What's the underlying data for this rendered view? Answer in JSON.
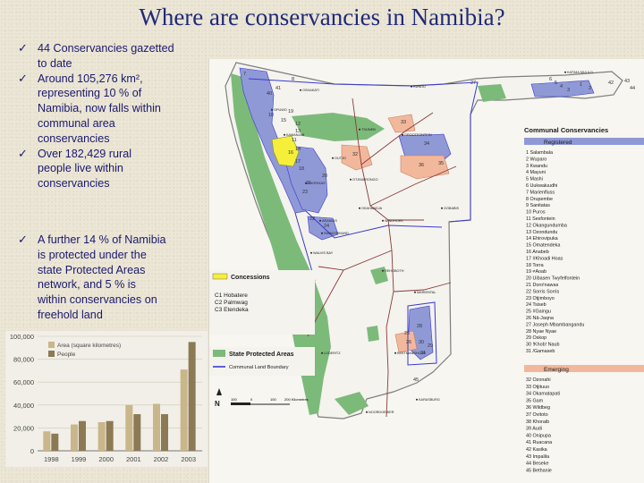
{
  "title": "Where are conservancies in Namibia?",
  "bullets": [
    {
      "lines": [
        "44 Conservancies gazetted",
        "to date"
      ]
    },
    {
      "lines": [
        "Around 105,276 km², ",
        "representing 10 % of",
        "Namibia, now falls within",
        "communal area",
        "conservancies"
      ]
    },
    {
      "lines": [
        "Over 182,429 rural",
        "people live within",
        "conservancies"
      ]
    },
    {
      "lines": [
        "A further 14 % of Namibia",
        "is protected under the",
        "state Protected Areas",
        "network, and 5 % is",
        "within conservancies on",
        "freehold land"
      ]
    }
  ],
  "chart_data": {
    "type": "bar",
    "categories": [
      "1998",
      "1999",
      "2000",
      "2001",
      "2002",
      "2003"
    ],
    "series": [
      {
        "name": "Area (square kilometres)",
        "color": "#c9b68a",
        "values": [
          17000,
          23000,
          25000,
          40000,
          41000,
          71000
        ]
      },
      {
        "name": "People",
        "color": "#8c7a55",
        "values": [
          15000,
          26000,
          26000,
          32000,
          32000,
          95000
        ]
      }
    ],
    "ylim": [
      0,
      100000
    ],
    "yticks": [
      "0",
      "20,000",
      "40,000",
      "60,000",
      "80,000",
      "100,000"
    ],
    "legend": "top-left"
  },
  "map": {
    "legend_communal": {
      "title": "Communal Conservancies",
      "registered_label": "Registered",
      "registered_color": "#8f99d6",
      "registered_items": [
        "1 Salambala",
        "2 Wuparo",
        "3 Kwandu",
        "4 Mayuni",
        "5 Mashi",
        "6 Uukwaluudhi",
        "7 Marienfluss",
        "8 Orupembe",
        "9 Sanitatas",
        "10 Puros",
        "11 Sesfontein",
        "12 Okangundumba",
        "13 Ozondundu",
        "14 Ehirovipuka",
        "15 Omatendeka",
        "16 Anabeb",
        "17 #Khoadi Hoas",
        "18 Torra",
        "19 ≠Aoab",
        "20 Uibasen Twyfelfontein",
        "21 Doro!nawas",
        "22 Sorris Sorris",
        "23 Otjimboyo",
        "24 Tsiseb",
        "25 #Gaingu",
        "26 Nâ-Jaqna",
        "27 Joseph Mbambangandu",
        "28 Nyae Nyae",
        "29 Oskop",
        "30 !Khob! Naub",
        "31 /Gamaseb"
      ],
      "emerging_label": "Emerging",
      "emerging_color": "#f2b89c",
      "emerging_items": [
        "32 Ozonahi",
        "33 Otjituuo",
        "34 Okamatapati",
        "35 Gam",
        "36 Wildbeg",
        "37 Ovitoto",
        "38 Khoraib",
        "39 Audi",
        "40 Onipupa",
        "41 Ruacana",
        "42 Kasika",
        "43 Impalila",
        "44 Beseke",
        "45 Bethanie"
      ]
    },
    "legend_concessions": {
      "title": "Concessions",
      "color": "#f5ef3a",
      "items": [
        "C1  Hobatere",
        "C2  Palmwag",
        "C3  Etendeka"
      ]
    },
    "legend_protected": {
      "label": "State Protected Areas",
      "color": "#7cba7a"
    },
    "legend_boundary": {
      "label": "Communal Land Boundary",
      "color": "#3a3ad0"
    },
    "scale": {
      "labels": [
        "100",
        "0",
        "100",
        "200 Kilometres"
      ]
    },
    "north": "N",
    "towns": [
      "OSHAKATI",
      "RUNDU",
      "KATIMA MULILO",
      "OUTJO",
      "TSUMEB",
      "GROOTFONTEIN",
      "OTJIWARONGO",
      "OKAHANDJA",
      "WINDHOEK",
      "GOBABIS",
      "SWAKOPMUND",
      "WALVIS BAY",
      "REHOBOTH",
      "KEETMANSHOOP",
      "LÜDERITZ",
      "MARIENTAL",
      "KARASBURG",
      "NOORDOEWER",
      "ARANDIS",
      "KHORIXAS",
      "OPUWO",
      "KAMANJAB"
    ],
    "region_numbers": [
      "7",
      "8",
      "12",
      "15",
      "14",
      "10",
      "11",
      "16",
      "17",
      "18",
      "21",
      "20",
      "22",
      "23",
      "24",
      "34",
      "33",
      "32",
      "36",
      "35",
      "28",
      "27",
      "1",
      "2",
      "3",
      "4",
      "5",
      "6",
      "42",
      "43",
      "44",
      "26",
      "25",
      "31",
      "30",
      "29",
      "45",
      "13",
      "40",
      "41",
      "19"
    ]
  }
}
